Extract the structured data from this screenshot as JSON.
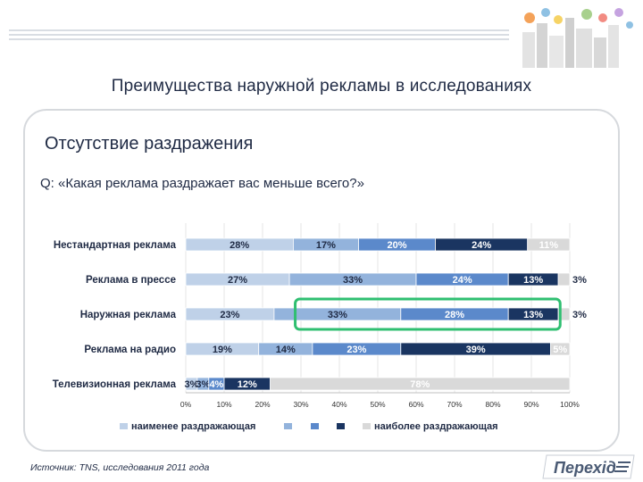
{
  "page_title": "Преимущества наружной рекламы в исследованиях",
  "section_title": "Отсутствие раздражения",
  "question": "Q: «Какая реклама раздражает вас меньше всего?»",
  "source": "Источник: TNS, исследования 2011 года",
  "logo_text": "Перехід",
  "colors": {
    "series": [
      "#bfd1e8",
      "#93b3dc",
      "#5b89cb",
      "#1a3561",
      "#d9d9d9"
    ],
    "highlight": "#2fbf71"
  },
  "chart_data": {
    "type": "bar",
    "orientation": "horizontal",
    "stacked": true,
    "categories": [
      "Нестандартная реклама",
      "Реклама в прессе",
      "Наружная реклама",
      "Реклама на радио",
      "Телевизионная реклама"
    ],
    "series": [
      {
        "name": "наименее раздражающая",
        "values": [
          28,
          27,
          23,
          19,
          3
        ]
      },
      {
        "name": "",
        "values": [
          17,
          33,
          33,
          14,
          3
        ]
      },
      {
        "name": "",
        "values": [
          20,
          24,
          28,
          23,
          4
        ]
      },
      {
        "name": "",
        "values": [
          24,
          13,
          13,
          39,
          12
        ]
      },
      {
        "name": "наиболее раздражающая",
        "values": [
          11,
          3,
          3,
          5,
          78
        ]
      }
    ],
    "labels": [
      [
        "28%",
        "27%",
        "23%",
        "19%",
        "3%"
      ],
      [
        "17%",
        "33%",
        "33%",
        "14%",
        "3%"
      ],
      [
        "20%",
        "24%",
        "28%",
        "23%",
        "4%"
      ],
      [
        "24%",
        "13%",
        "13%",
        "39%",
        "12%"
      ],
      [
        "11%",
        "3%",
        "3%",
        "5%",
        "78%"
      ]
    ],
    "x_ticks": [
      "0%",
      "10%",
      "20%",
      "30%",
      "40%",
      "50%",
      "60%",
      "70%",
      "80%",
      "90%",
      "100%"
    ],
    "xlim": [
      0,
      100
    ],
    "highlight_category": "Наружная реклама",
    "legend_placement": "bottom",
    "grid": true
  }
}
